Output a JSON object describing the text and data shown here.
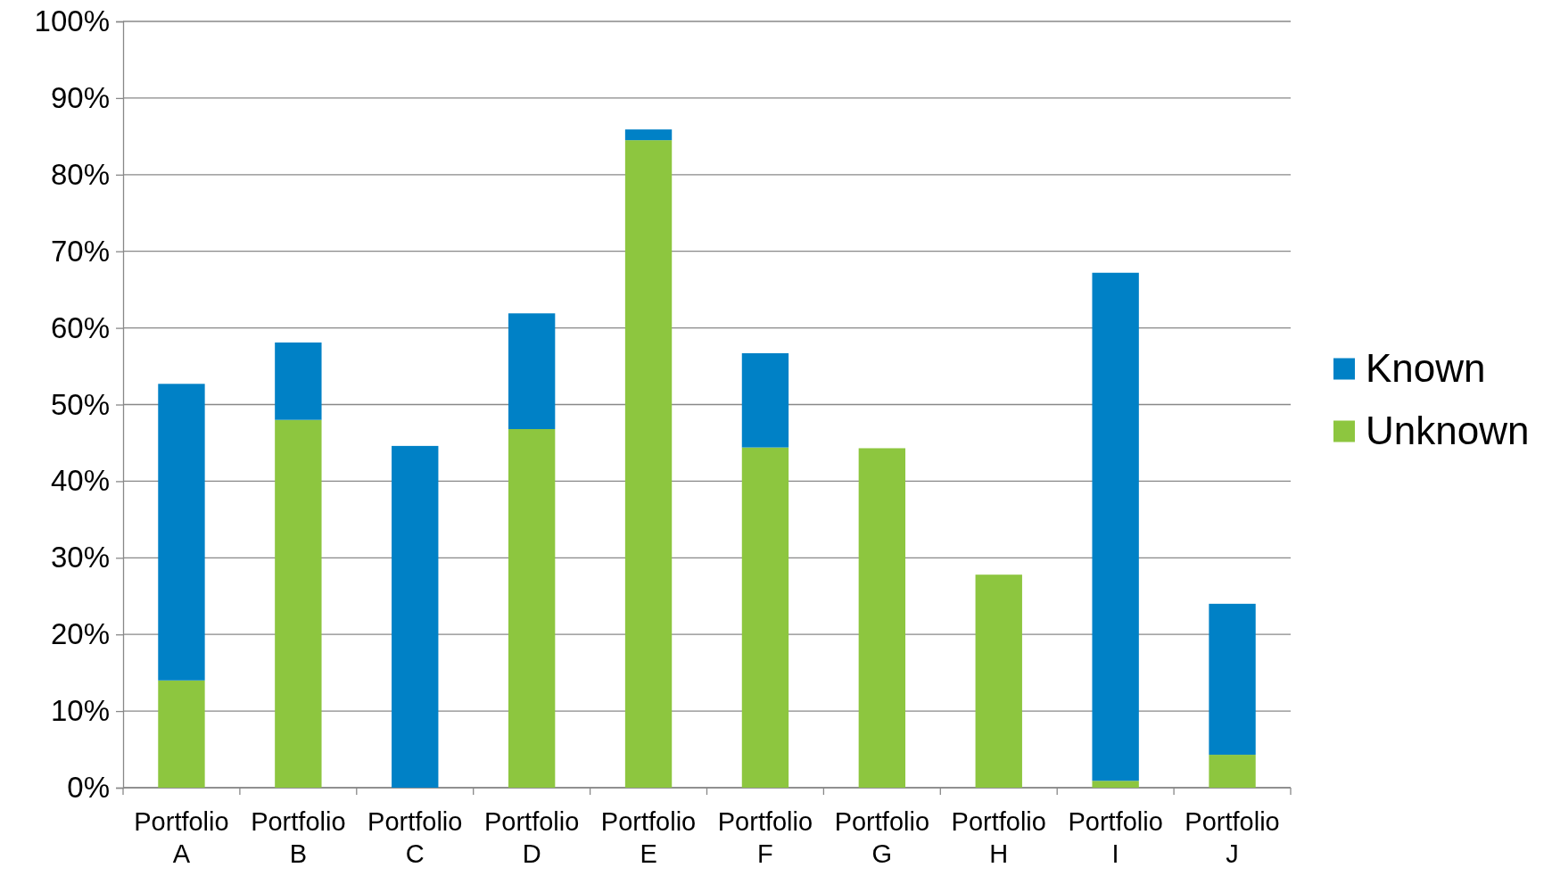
{
  "chart_data": {
    "type": "bar",
    "stacked": true,
    "categories": [
      "Portfolio A",
      "Portfolio B",
      "Portfolio C",
      "Portfolio D",
      "Portfolio E",
      "Portfolio F",
      "Portfolio G",
      "Portfolio H",
      "Portfolio I",
      "Portfolio J"
    ],
    "series": [
      {
        "name": "Unknown",
        "color": "#8dc63f",
        "values": [
          14,
          48,
          0,
          46.8,
          84.5,
          44.4,
          44.3,
          27.8,
          0.9,
          4.3
        ]
      },
      {
        "name": "Known",
        "color": "#0081c6",
        "values": [
          38.7,
          10.1,
          44.6,
          15.1,
          1.4,
          12.3,
          0,
          0,
          66.3,
          19.7
        ]
      }
    ],
    "ylim": [
      0,
      100
    ],
    "yticks": [
      {
        "value": 0,
        "label": "0%"
      },
      {
        "value": 10,
        "label": "10%"
      },
      {
        "value": 20,
        "label": "20%"
      },
      {
        "value": 30,
        "label": "30%"
      },
      {
        "value": 40,
        "label": "40%"
      },
      {
        "value": 50,
        "label": "50%"
      },
      {
        "value": 60,
        "label": "60%"
      },
      {
        "value": 70,
        "label": "70%"
      },
      {
        "value": 80,
        "label": "80%"
      },
      {
        "value": 90,
        "label": "90%"
      },
      {
        "value": 100,
        "label": "100%"
      }
    ],
    "grid": "y",
    "legend": "right"
  }
}
